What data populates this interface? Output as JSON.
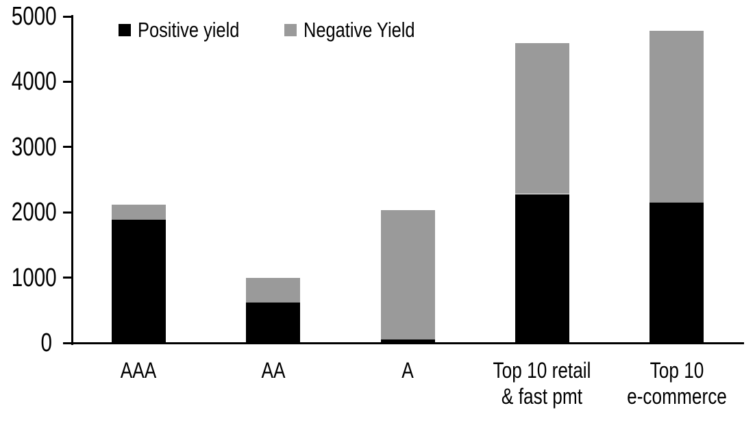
{
  "chart_data": {
    "type": "bar",
    "stacked": true,
    "title": "",
    "xlabel": "",
    "ylabel": "",
    "grid": false,
    "legend_position": "top-left-inside",
    "ylim": [
      0,
      5000
    ],
    "ytick_step": 1000,
    "ytick_labels": [
      "0",
      "1000",
      "2000",
      "3000",
      "4000",
      "5000"
    ],
    "categories": [
      "AAA",
      "AA",
      "A",
      "Top 10 retail & fast pmt",
      "Top 10 e-commerce"
    ],
    "category_lines": [
      [
        "AAA"
      ],
      [
        "AA"
      ],
      [
        "A"
      ],
      [
        "Top 10 retail",
        "& fast pmt"
      ],
      [
        "Top 10",
        "e-commerce"
      ]
    ],
    "series": [
      {
        "name": "Positive yield",
        "color": "#000000",
        "values": [
          1890,
          620,
          50,
          2280,
          2150
        ]
      },
      {
        "name": "Negative Yield",
        "color": "#9a9a9a",
        "values": [
          230,
          380,
          1980,
          2310,
          2630
        ]
      }
    ],
    "stack_totals": [
      2120,
      1000,
      2030,
      4590,
      4780
    ]
  },
  "colors": {
    "background": "#ffffff",
    "axis": "#000000",
    "positive_series": "#000000",
    "negative_series": "#9a9a9a"
  }
}
